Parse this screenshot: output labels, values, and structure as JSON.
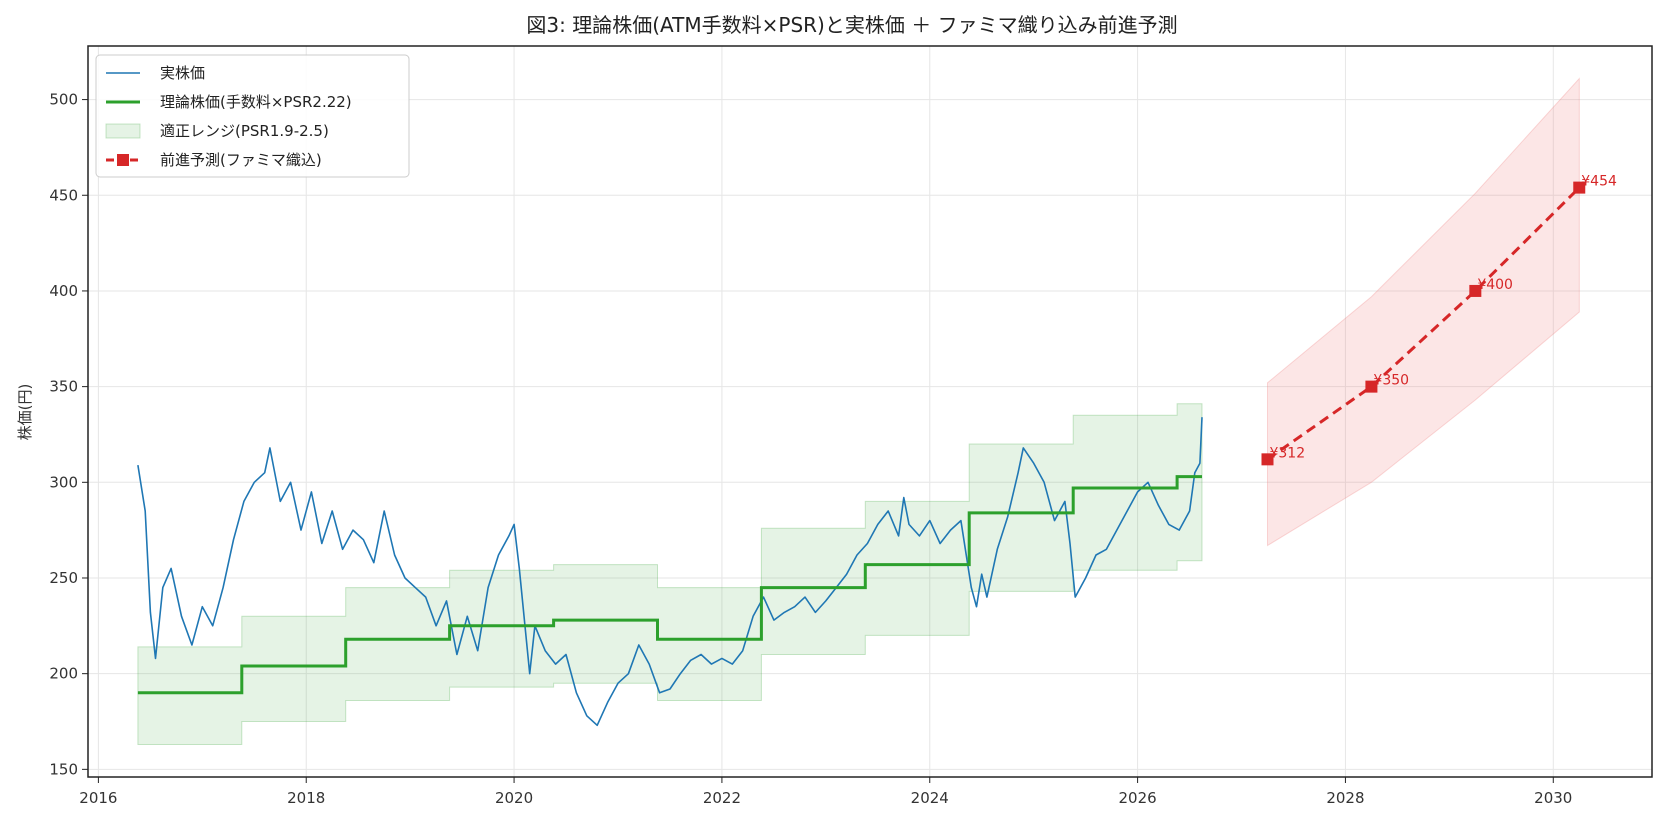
{
  "chart_data": {
    "type": "line",
    "title": "図3: 理論株価(ATM手数料×PSR)と実株価 ＋ ファミマ織り込み前進予測",
    "xlabel": "",
    "ylabel": "株価(円)",
    "xlim": [
      2015.9,
      2030.95
    ],
    "ylim": [
      146,
      528
    ],
    "xticks": [
      2016,
      2018,
      2020,
      2022,
      2024,
      2026,
      2028,
      2030
    ],
    "yticks": [
      150,
      200,
      250,
      300,
      350,
      400,
      450,
      500
    ],
    "grid": true,
    "legend_position": "top-left",
    "colors": {
      "actual": "#1f77b4",
      "theory": "#2ca02c",
      "range_fill": "#2ca02c",
      "forecast": "#d62728",
      "forecast_band": "#f08080"
    },
    "legend": [
      "実株価",
      "理論株価(手数料×PSR2.22)",
      "適正レンジ(PSR1.9-2.5)",
      "前進予測(ファミマ織込)"
    ],
    "series": [
      {
        "name": "実株価",
        "x": [
          2016.38,
          2016.45,
          2016.5,
          2016.55,
          2016.62,
          2016.7,
          2016.8,
          2016.9,
          2017.0,
          2017.1,
          2017.2,
          2017.3,
          2017.4,
          2017.5,
          2017.6,
          2017.65,
          2017.75,
          2017.85,
          2017.95,
          2018.05,
          2018.15,
          2018.25,
          2018.35,
          2018.45,
          2018.55,
          2018.65,
          2018.75,
          2018.85,
          2018.95,
          2019.05,
          2019.15,
          2019.25,
          2019.35,
          2019.45,
          2019.55,
          2019.65,
          2019.75,
          2019.85,
          2019.95,
          2020.0,
          2020.05,
          2020.15,
          2020.2,
          2020.3,
          2020.4,
          2020.5,
          2020.6,
          2020.7,
          2020.8,
          2020.9,
          2021.0,
          2021.1,
          2021.2,
          2021.3,
          2021.4,
          2021.5,
          2021.6,
          2021.7,
          2021.8,
          2021.9,
          2022.0,
          2022.1,
          2022.2,
          2022.3,
          2022.4,
          2022.5,
          2022.6,
          2022.7,
          2022.8,
          2022.9,
          2023.0,
          2023.1,
          2023.2,
          2023.3,
          2023.4,
          2023.5,
          2023.6,
          2023.7,
          2023.75,
          2023.8,
          2023.9,
          2024.0,
          2024.1,
          2024.2,
          2024.3,
          2024.4,
          2024.45,
          2024.5,
          2024.55,
          2024.65,
          2024.75,
          2024.85,
          2024.9,
          2025.0,
          2025.1,
          2025.2,
          2025.3,
          2025.35,
          2025.4,
          2025.5,
          2025.6,
          2025.7,
          2025.8,
          2025.9,
          2026.0,
          2026.1,
          2026.2,
          2026.3,
          2026.4,
          2026.5,
          2026.55,
          2026.6,
          2026.62
        ],
        "y": [
          309,
          285,
          232,
          208,
          245,
          255,
          230,
          215,
          235,
          225,
          245,
          270,
          290,
          300,
          305,
          318,
          290,
          300,
          275,
          295,
          268,
          285,
          265,
          275,
          270,
          258,
          285,
          262,
          250,
          245,
          240,
          225,
          238,
          210,
          230,
          212,
          245,
          262,
          272,
          278,
          255,
          200,
          225,
          212,
          205,
          210,
          190,
          178,
          173,
          185,
          195,
          200,
          215,
          205,
          190,
          192,
          200,
          207,
          210,
          205,
          208,
          205,
          212,
          230,
          240,
          228,
          232,
          235,
          240,
          232,
          238,
          245,
          252,
          262,
          268,
          278,
          285,
          272,
          292,
          278,
          272,
          280,
          268,
          275,
          280,
          245,
          235,
          252,
          240,
          265,
          282,
          305,
          318,
          310,
          300,
          280,
          290,
          268,
          240,
          250,
          262,
          265,
          275,
          285,
          295,
          300,
          288,
          278,
          275,
          285,
          305,
          310,
          334
        ]
      },
      {
        "name": "理論株価(手数料×PSR2.22)",
        "x": [
          2016.38,
          2017.38,
          2018.38,
          2019.38,
          2020.38,
          2021.38,
          2022.38,
          2023.38,
          2024.38,
          2025.38,
          2026.38,
          2026.62
        ],
        "y": [
          190,
          204,
          218,
          225,
          228,
          218,
          245,
          257,
          284,
          297,
          303,
          303
        ]
      },
      {
        "name": "適正レンジ(PSR1.9-2.5)",
        "x": [
          2016.38,
          2017.38,
          2018.38,
          2019.38,
          2020.38,
          2021.38,
          2022.38,
          2023.38,
          2024.38,
          2025.38,
          2026.38,
          2026.62
        ],
        "lower": [
          163,
          175,
          186,
          193,
          195,
          186,
          210,
          220,
          243,
          254,
          259,
          259
        ],
        "upper": [
          214,
          230,
          245,
          254,
          257,
          245,
          276,
          290,
          320,
          335,
          341,
          341
        ]
      },
      {
        "name": "前進予測(ファミマ織込)",
        "x": [
          2027.25,
          2028.25,
          2029.25,
          2030.25
        ],
        "y": [
          312,
          350,
          400,
          454
        ],
        "lower": [
          267,
          300,
          343,
          389
        ],
        "upper": [
          352,
          397,
          451,
          511
        ],
        "labels": [
          "¥312",
          "¥350",
          "¥400",
          "¥454"
        ]
      }
    ]
  }
}
